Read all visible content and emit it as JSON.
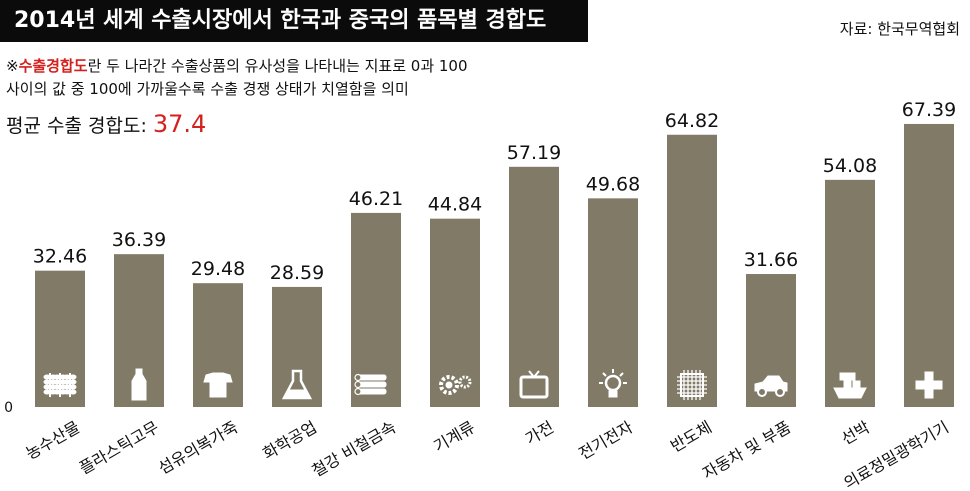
{
  "title": "2014년 세계 수출시장에서 한국과 중국의 품목별 경합도",
  "source": "자료: 한국무역협회",
  "note": {
    "mark": "※",
    "highlight": "수출경합도",
    "line1_rest": "란 두 나라간 수출상품의 유사성을 나타내는 지표로 0과 100",
    "line2": "사이의 값 중 100에 가까울수록 수출 경쟁 상태가 치열함을 의미"
  },
  "average": {
    "label": "평균 수출 경합도:",
    "value": "37.4"
  },
  "colors": {
    "bar": "#807a67",
    "title_bg": "#0b0b0b",
    "highlight": "#d4201e"
  },
  "chart_data": {
    "type": "bar",
    "title": "2014년 세계 수출시장에서 한국과 중국의 품목별 경합도",
    "xlabel": "",
    "ylabel": "",
    "ylim": [
      0,
      100
    ],
    "y_ticks": [
      "0"
    ],
    "grid": false,
    "categories": [
      "농수산물",
      "플라스틱고무",
      "섬유의복가죽",
      "화학공업",
      "철강 비철금속",
      "기계류",
      "가전",
      "전기전자",
      "반도체",
      "자동차 및 부품",
      "선박",
      "의료정밀광학기기"
    ],
    "values": [
      32.46,
      36.39,
      29.48,
      28.59,
      46.21,
      44.84,
      57.19,
      49.68,
      64.82,
      31.66,
      54.08,
      67.39
    ],
    "value_labels": [
      "32.46",
      "36.39",
      "29.48",
      "28.59",
      "46.21",
      "44.84",
      "57.19",
      "49.68",
      "64.82",
      "31.66",
      "54.08",
      "67.39"
    ],
    "icons": [
      "wheat-icon",
      "bottle-icon",
      "shirt-icon",
      "flask-icon",
      "steel-pipes-icon",
      "gears-icon",
      "tv-icon",
      "lightbulb-icon",
      "chip-icon",
      "car-icon",
      "ship-icon",
      "medical-cross-icon"
    ]
  }
}
